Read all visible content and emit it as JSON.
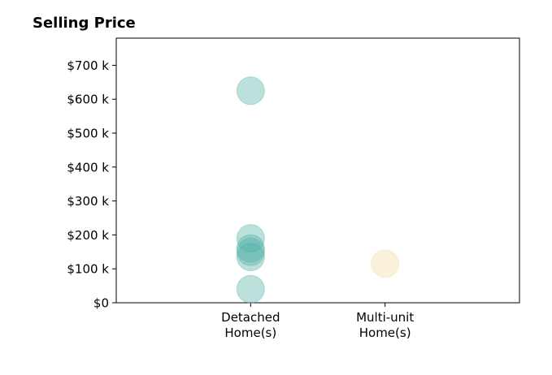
{
  "chart_data": {
    "type": "scatter",
    "title": "Selling Price",
    "categories": [
      "Detached Home(s)",
      "Multi-unit Home(s)"
    ],
    "values": [
      [
        625000,
        190000,
        160000,
        150000,
        135000,
        40000
      ],
      [
        115000
      ]
    ],
    "colors": [
      "#4fb0a6",
      "#f3d9a0"
    ],
    "alpha": 0.38,
    "ylim": [
      0,
      780000
    ],
    "yticks": [
      {
        "value": 0,
        "label": "$0"
      },
      {
        "value": 100000,
        "label": "$100 k"
      },
      {
        "value": 200000,
        "label": "$200 k"
      },
      {
        "value": 300000,
        "label": "$300 k"
      },
      {
        "value": 400000,
        "label": "$400 k"
      },
      {
        "value": 500000,
        "label": "$500 k"
      },
      {
        "value": 600000,
        "label": "$600 k"
      },
      {
        "value": 700000,
        "label": "$700 k"
      }
    ],
    "grid": false
  }
}
